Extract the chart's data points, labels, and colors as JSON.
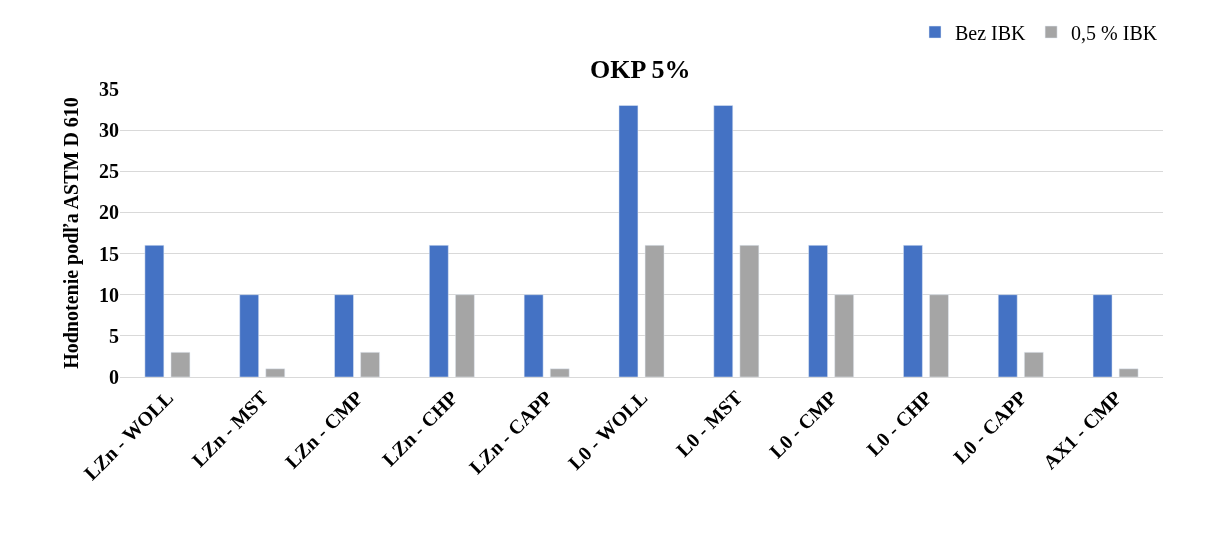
{
  "chart_data": {
    "type": "bar",
    "title": "OKP 5%",
    "ylabel": "Hodnotenie podľa ASTM D 610",
    "categories": [
      "LZn - WOLL",
      "LZn - MST",
      "LZn - CMP",
      "LZn - CHP",
      "LZn - CAPP",
      "L0 - WOLL",
      "L0 - MST",
      "L0 - CMP",
      "L0 - CHP",
      "L0 - CAPP",
      "AX1 - CMP"
    ],
    "series": [
      {
        "name": "Bez IBK",
        "color": "#4472c4",
        "values": [
          16,
          10,
          10,
          16,
          10,
          33,
          33,
          16,
          16,
          10,
          10
        ]
      },
      {
        "name": "0,5 % IBK",
        "color": "#a5a5a5",
        "values": [
          3,
          1,
          3,
          10,
          1,
          16,
          16,
          10,
          10,
          3,
          1
        ]
      }
    ],
    "ylim": [
      0,
      35
    ],
    "yticks": [
      0,
      5,
      10,
      15,
      20,
      25,
      30,
      35
    ],
    "grid": "y",
    "legend": "top right"
  }
}
